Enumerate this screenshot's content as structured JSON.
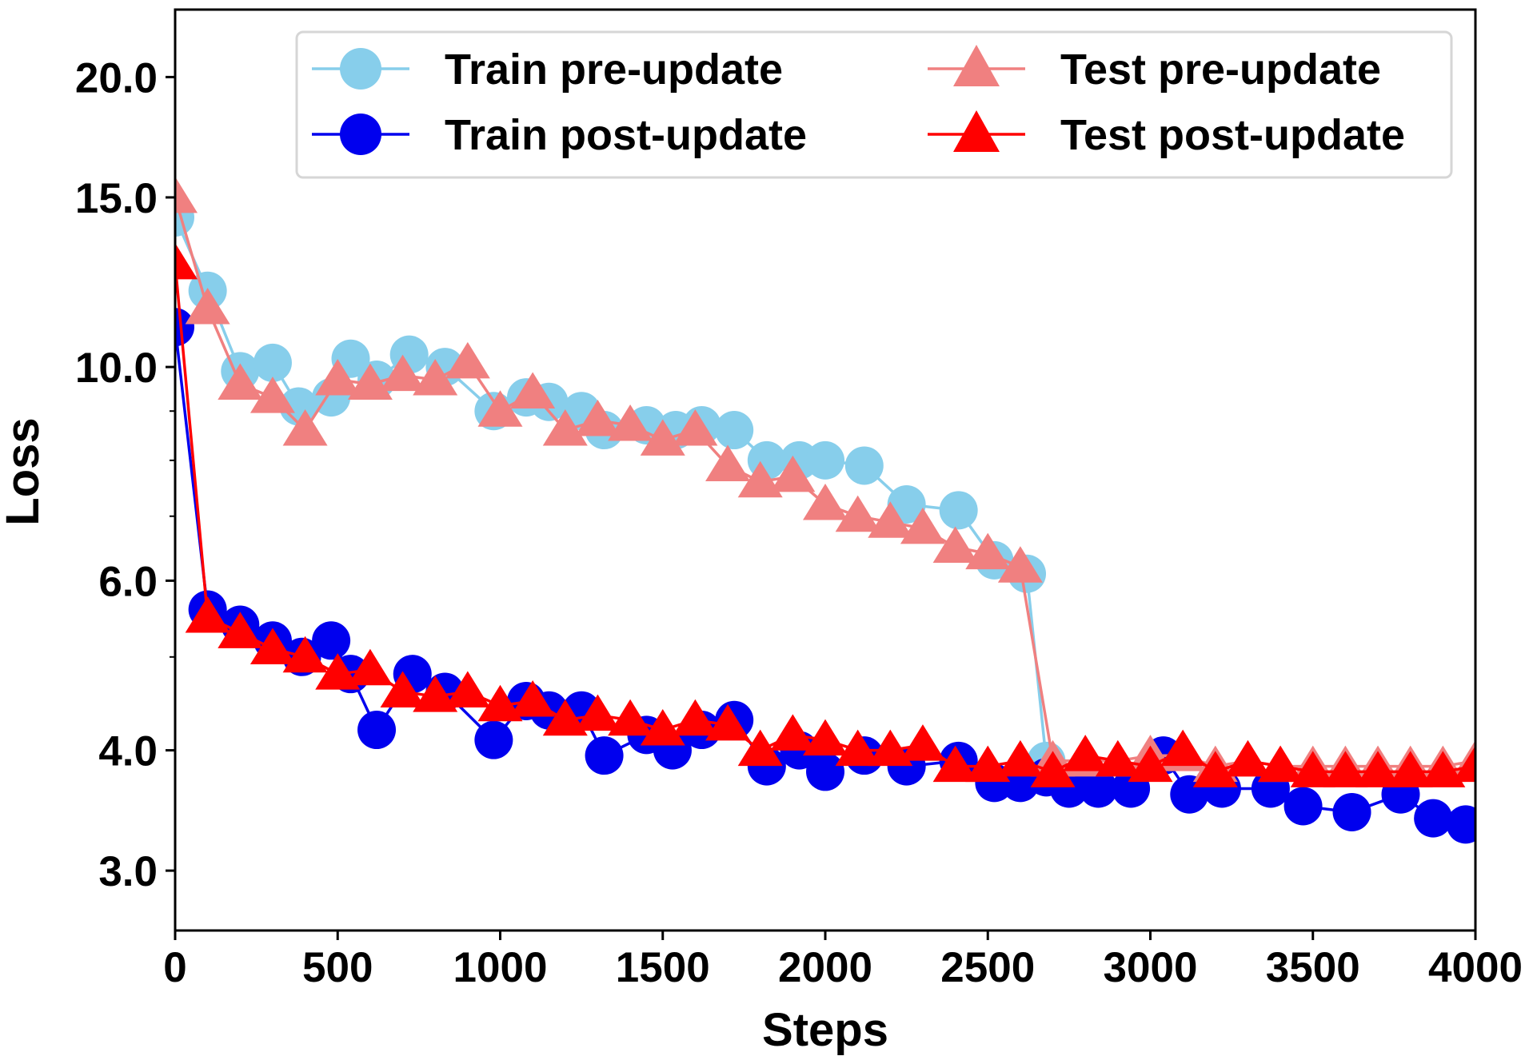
{
  "chart_data": {
    "type": "line",
    "title": "",
    "xlabel": "Steps",
    "ylabel": "Loss",
    "xlim": [
      0,
      4000
    ],
    "ylim": [
      2.6,
      23.5
    ],
    "yscale": "log",
    "xticks": [
      0,
      500,
      1000,
      1500,
      2000,
      2500,
      3000,
      3500,
      4000
    ],
    "xtick_labels": [
      "0",
      "500",
      "1000",
      "1500",
      "2000",
      "2500",
      "3000",
      "3500",
      "4000"
    ],
    "yticks": [
      3.0,
      4.0,
      6.0,
      10.0,
      15.0,
      20.0
    ],
    "ytick_labels": [
      "3.0",
      "4.0",
      "6.0",
      "10.0",
      "15.0",
      "20.0"
    ],
    "yminor_ticks": [
      5.0,
      7.0,
      8.0,
      9.0
    ],
    "grid": false,
    "legend_position": "top-right",
    "series": [
      {
        "name": "Train pre-update",
        "color": "#87ceeb",
        "marker": "circle",
        "x": [
          0,
          100,
          200,
          300,
          380,
          480,
          540,
          620,
          720,
          830,
          980,
          1080,
          1150,
          1250,
          1320,
          1450,
          1540,
          1620,
          1720,
          1820,
          1920,
          2000,
          2120,
          2250,
          2410,
          2520,
          2620,
          2680
        ],
        "y": [
          14.3,
          12.0,
          9.9,
          10.1,
          9.1,
          9.3,
          10.2,
          9.7,
          10.3,
          10.0,
          9.0,
          9.3,
          9.2,
          9.0,
          8.6,
          8.7,
          8.6,
          8.7,
          8.6,
          8.0,
          8.0,
          8.0,
          7.9,
          7.2,
          7.1,
          6.3,
          6.1,
          3.9
        ]
      },
      {
        "name": "Train post-update",
        "color": "#0000ee",
        "marker": "circle",
        "x": [
          0,
          100,
          200,
          300,
          390,
          480,
          540,
          620,
          730,
          830,
          980,
          1080,
          1150,
          1250,
          1320,
          1450,
          1530,
          1620,
          1720,
          1820,
          1920,
          2000,
          2120,
          2250,
          2410,
          2520,
          2600,
          2680,
          2750,
          2840,
          2940,
          3040,
          3120,
          3220,
          3370,
          3470,
          3620,
          3770,
          3870,
          3970
        ],
        "y": [
          11.0,
          5.6,
          5.4,
          5.2,
          5.0,
          5.2,
          4.8,
          4.2,
          4.8,
          4.6,
          4.1,
          4.5,
          4.4,
          4.4,
          3.95,
          4.15,
          4.0,
          4.2,
          4.3,
          3.85,
          4.0,
          3.8,
          3.95,
          3.85,
          3.9,
          3.7,
          3.7,
          3.75,
          3.65,
          3.65,
          3.65,
          3.95,
          3.6,
          3.65,
          3.65,
          3.5,
          3.45,
          3.6,
          3.4,
          3.35
        ]
      },
      {
        "name": "Test pre-update",
        "color": "#f08080",
        "marker": "triangle",
        "x": [
          0,
          100,
          200,
          300,
          400,
          500,
          600,
          700,
          800,
          900,
          1000,
          1100,
          1200,
          1300,
          1400,
          1500,
          1600,
          1700,
          1800,
          1900,
          2000,
          2100,
          2200,
          2300,
          2400,
          2500,
          2600,
          2700,
          2800,
          2900,
          3000,
          3100,
          3200,
          3300,
          3400,
          3500,
          3600,
          3700,
          3800,
          3900,
          4000
        ],
        "y": [
          15.0,
          11.5,
          9.6,
          9.3,
          8.6,
          9.7,
          9.6,
          9.8,
          9.7,
          10.1,
          9.0,
          9.4,
          8.6,
          8.8,
          8.7,
          8.4,
          8.6,
          7.9,
          7.6,
          7.7,
          7.2,
          7.0,
          6.9,
          6.8,
          6.5,
          6.4,
          6.2,
          3.9,
          3.9,
          3.9,
          3.95,
          3.95,
          3.85,
          3.9,
          3.85,
          3.85,
          3.85,
          3.85,
          3.85,
          3.85,
          3.9
        ]
      },
      {
        "name": "Test post-update",
        "color": "#ff0000",
        "marker": "triangle",
        "x": [
          0,
          100,
          200,
          300,
          400,
          500,
          600,
          700,
          800,
          900,
          1000,
          1100,
          1200,
          1300,
          1400,
          1500,
          1600,
          1700,
          1800,
          1900,
          2000,
          2100,
          2200,
          2300,
          2400,
          2500,
          2600,
          2700,
          2800,
          2900,
          3000,
          3100,
          3200,
          3300,
          3400,
          3500,
          3600,
          3700,
          3800,
          3900,
          4000
        ],
        "y": [
          12.8,
          5.5,
          5.3,
          5.1,
          5.0,
          4.8,
          4.85,
          4.6,
          4.55,
          4.6,
          4.45,
          4.5,
          4.3,
          4.35,
          4.3,
          4.2,
          4.3,
          4.25,
          4.0,
          4.15,
          4.1,
          4.0,
          4.0,
          4.05,
          3.85,
          3.85,
          3.9,
          3.8,
          3.95,
          3.9,
          3.85,
          4.0,
          3.8,
          3.9,
          3.85,
          3.8,
          3.8,
          3.8,
          3.8,
          3.8,
          3.85
        ]
      }
    ]
  }
}
